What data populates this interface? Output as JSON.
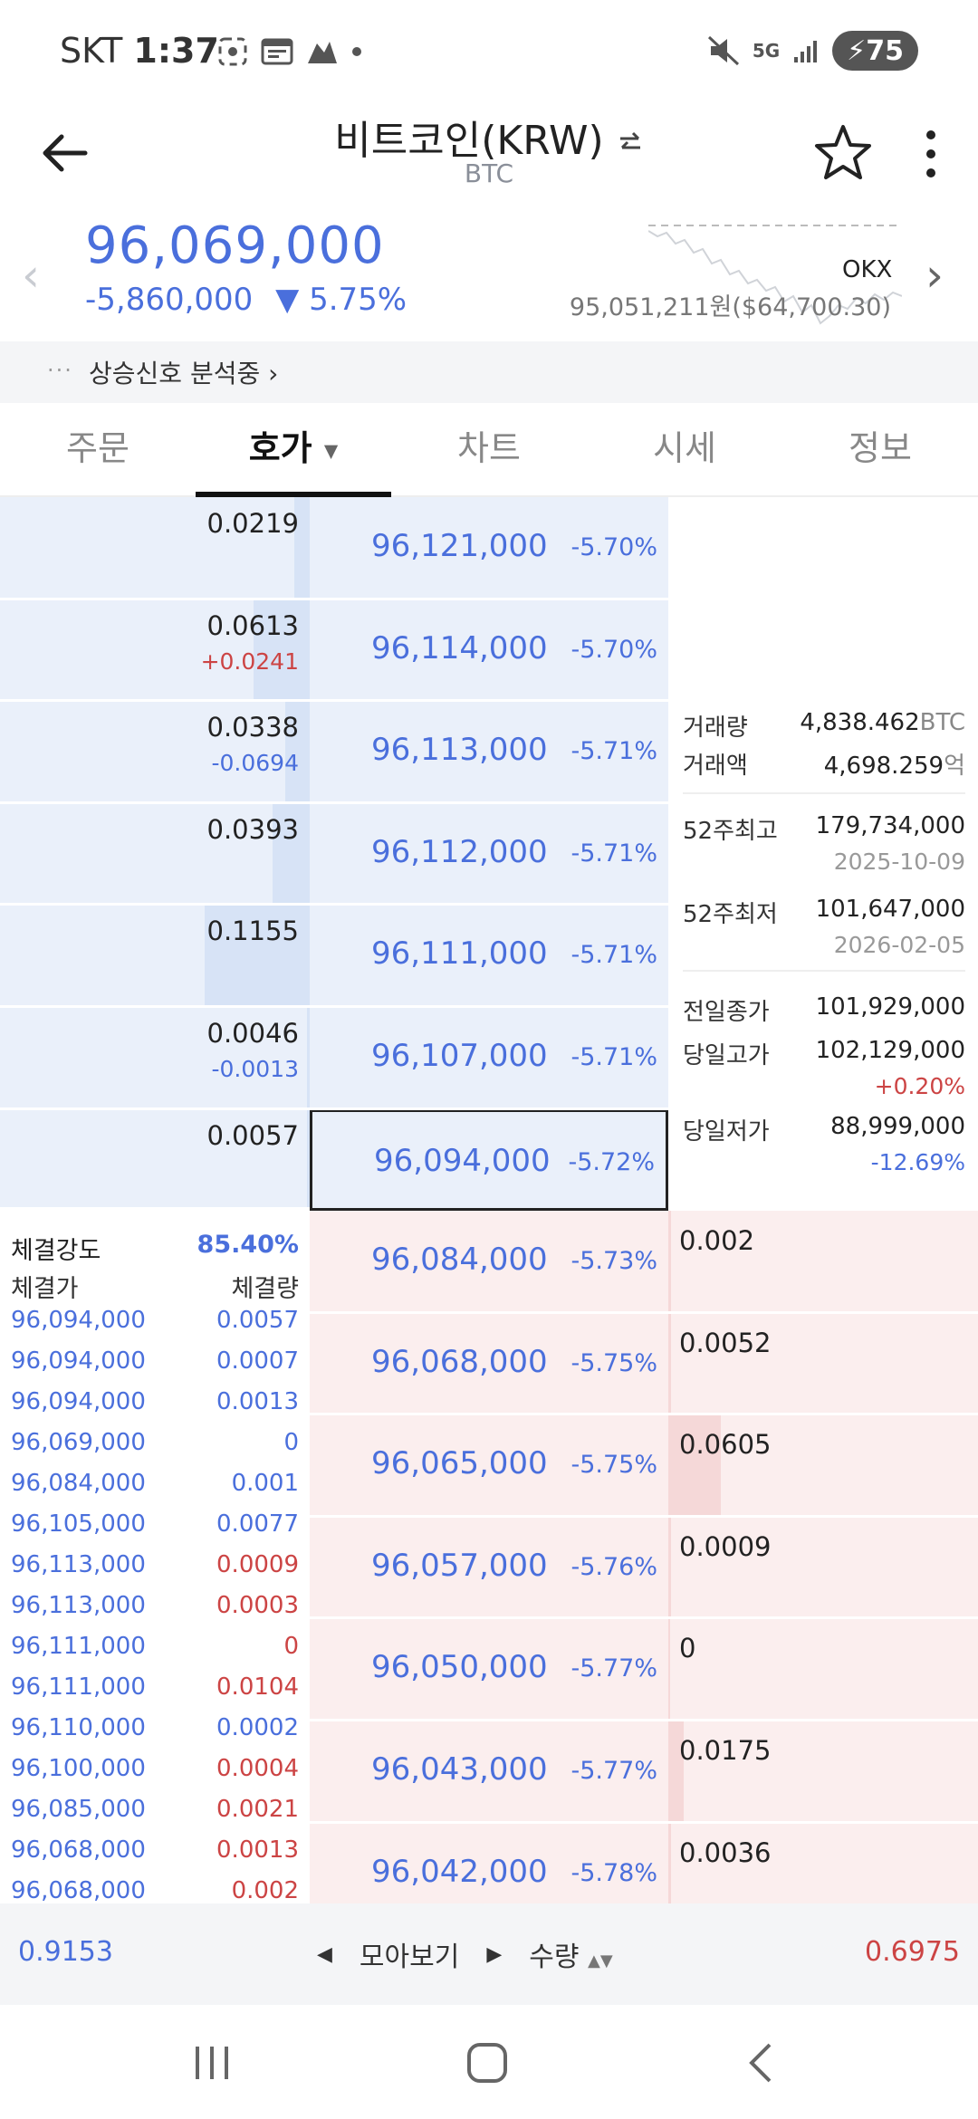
{
  "status": {
    "carrier": "SKT",
    "time": "1:37",
    "battery": "75",
    "network": "5G"
  },
  "header": {
    "title": "비트코인(KRW)",
    "subtitle": "BTC",
    "swap_icon": "swap-icon",
    "back_icon": "arrow-left-icon",
    "star_icon": "star-icon",
    "more_icon": "more-vertical-icon"
  },
  "price": {
    "current": "96,069,000",
    "change": "-5,860,000",
    "change_pct": "▼ 5.75%",
    "exchange": "OKX",
    "exchange_price": "95,051,211원($64,700.30)",
    "color": "#4a6fdc"
  },
  "signal": {
    "dots": "···",
    "text": "상승신호 분석중 ›"
  },
  "tabs": [
    {
      "label": "주문"
    },
    {
      "label": "호가",
      "caret": "▼"
    },
    {
      "label": "차트"
    },
    {
      "label": "시세"
    },
    {
      "label": "정보"
    }
  ],
  "asks": [
    {
      "qty": "0.0219",
      "delta": "",
      "price": "96,121,000",
      "rate": "-5.70%",
      "fill": 0.05
    },
    {
      "qty": "0.0613",
      "delta": "+0.0241",
      "delta_color": "#c44",
      "price": "96,114,000",
      "rate": "-5.70%",
      "fill": 0.18
    },
    {
      "qty": "0.0338",
      "delta": "-0.0694",
      "delta_color": "#4a6fdc",
      "price": "96,113,000",
      "rate": "-5.71%",
      "fill": 0.08
    },
    {
      "qty": "0.0393",
      "delta": "",
      "price": "96,112,000",
      "rate": "-5.71%",
      "fill": 0.12
    },
    {
      "qty": "0.1155",
      "delta": "",
      "price": "96,111,000",
      "rate": "-5.71%",
      "fill": 0.34
    },
    {
      "qty": "0.0046",
      "delta": "-0.0013",
      "delta_color": "#4a6fdc",
      "price": "96,107,000",
      "rate": "-5.71%",
      "fill": 0.01
    },
    {
      "qty": "0.0057",
      "delta": "",
      "price": "96,094,000",
      "rate": "-5.72%",
      "fill": 0.01
    }
  ],
  "bids": [
    {
      "qty": "0.002",
      "price": "96,084,000",
      "rate": "-5.73%",
      "fill": 0.01
    },
    {
      "qty": "0.0052",
      "price": "96,068,000",
      "rate": "-5.75%",
      "fill": 0.01
    },
    {
      "qty": "0.0605",
      "price": "96,065,000",
      "rate": "-5.75%",
      "fill": 0.17
    },
    {
      "qty": "0.0009",
      "price": "96,057,000",
      "rate": "-5.76%",
      "fill": 0.01
    },
    {
      "qty": "0",
      "price": "96,050,000",
      "rate": "-5.77%",
      "fill": 0
    },
    {
      "qty": "0.0175",
      "price": "96,043,000",
      "rate": "-5.77%",
      "fill": 0.05
    },
    {
      "qty": "0.0036",
      "price": "96,042,000",
      "rate": "-5.78%",
      "fill": 0.01
    }
  ],
  "info": {
    "volume_label": "거래량",
    "volume": "4,838.462",
    "volume_unit": "BTC",
    "amount_label": "거래액",
    "amount": "4,698.259",
    "amount_unit": "억",
    "high52_label": "52주최고",
    "high52": "179,734,000",
    "high52_date": "2025-10-09",
    "low52_label": "52주최저",
    "low52": "101,647,000",
    "low52_date": "2026-02-05",
    "prev_close_label": "전일종가",
    "prev_close": "101,929,000",
    "day_high_label": "당일고가",
    "day_high": "102,129,000",
    "day_high_pct": "+0.20%",
    "day_low_label": "당일저가",
    "day_low": "88,999,000",
    "day_low_pct": "-12.69%"
  },
  "trades": {
    "strength_label": "체결강도",
    "strength": "85.40%",
    "price_label": "체결가",
    "qty_label": "체결량",
    "rows": [
      {
        "price": "96,094,000",
        "qty": "0.0057",
        "side": "buy"
      },
      {
        "price": "96,094,000",
        "qty": "0.0007",
        "side": "buy"
      },
      {
        "price": "96,094,000",
        "qty": "0.0013",
        "side": "buy"
      },
      {
        "price": "96,069,000",
        "qty": "0",
        "side": "buy"
      },
      {
        "price": "96,084,000",
        "qty": "0.001",
        "side": "buy"
      },
      {
        "price": "96,105,000",
        "qty": "0.0077",
        "side": "buy"
      },
      {
        "price": "96,113,000",
        "qty": "0.0009",
        "side": "sell"
      },
      {
        "price": "96,113,000",
        "qty": "0.0003",
        "side": "sell"
      },
      {
        "price": "96,111,000",
        "qty": "0",
        "side": "sell"
      },
      {
        "price": "96,111,000",
        "qty": "0.0104",
        "side": "sell"
      },
      {
        "price": "96,110,000",
        "qty": "0.0002",
        "side": "buy"
      },
      {
        "price": "96,100,000",
        "qty": "0.0004",
        "side": "sell"
      },
      {
        "price": "96,085,000",
        "qty": "0.0021",
        "side": "sell"
      },
      {
        "price": "96,068,000",
        "qty": "0.0013",
        "side": "sell"
      },
      {
        "price": "96,068,000",
        "qty": "0.002",
        "side": "sell"
      }
    ]
  },
  "footer": {
    "ask_total": "0.9153",
    "bid_total": "0.6975",
    "group_label": "모아보기",
    "qty_label": "수량"
  }
}
